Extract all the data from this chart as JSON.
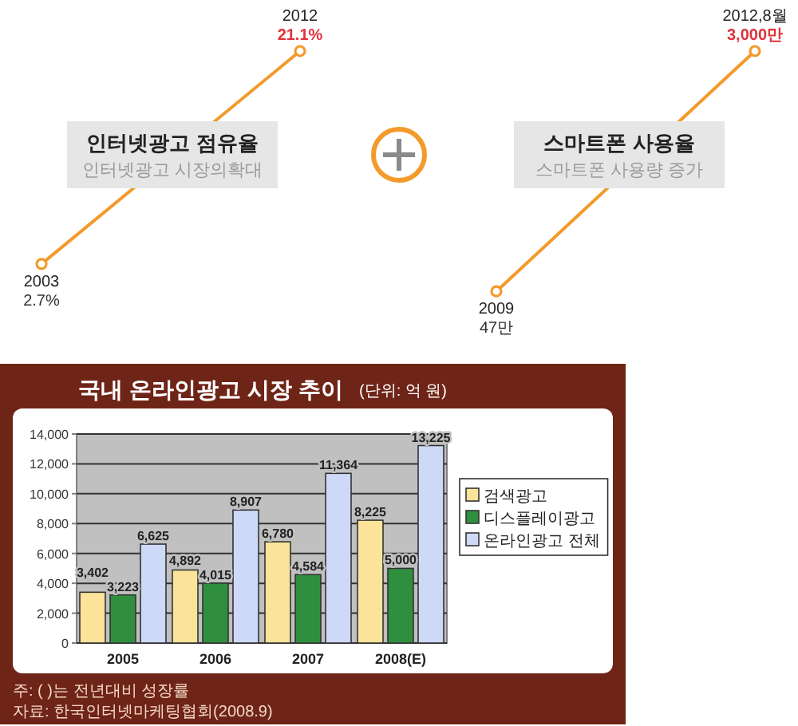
{
  "chart_data": [
    {
      "type": "line",
      "title": "인터넷광고 점유율",
      "subtitle": "인터넷광고 시장의확대",
      "categories": [
        "2003",
        "2012"
      ],
      "series": [
        {
          "color": "#f39a2b",
          "values": [
            2.7,
            21.1
          ],
          "value_labels": [
            "2.7%",
            "21.1%"
          ]
        }
      ],
      "marker": "circle"
    },
    {
      "type": "line",
      "title": "스마트폰 사용율",
      "subtitle": "스마트폰 사용량 증가",
      "categories": [
        "2009",
        "2012,8월"
      ],
      "series": [
        {
          "color": "#f39a2b",
          "values": [
            47,
            3000
          ],
          "value_labels": [
            "47만",
            "3,000만"
          ]
        }
      ],
      "marker": "circle"
    },
    {
      "type": "bar",
      "title": "국내 온라인광고 시장 추이",
      "subtitle": "(단위: 억 원)",
      "categories": [
        "2005",
        "2006",
        "2007",
        "2008(E)"
      ],
      "series": [
        {
          "name": "검색광고",
          "color": "#fbe39a",
          "values": [
            3402,
            4892,
            6780,
            8225
          ],
          "value_labels": [
            "3,402",
            "4,892",
            "6,780",
            "8,225"
          ]
        },
        {
          "name": "디스플레이광고",
          "color": "#2f8f3f",
          "values": [
            3223,
            4015,
            4584,
            5000
          ],
          "value_labels": [
            "3,223",
            "4,015",
            "4,584",
            "5,000"
          ]
        },
        {
          "name": "온라인광고 전체",
          "color": "#cdd9f7",
          "values": [
            6625,
            8907,
            11364,
            13225
          ],
          "value_labels": [
            "6,625",
            "8,907",
            "11,364",
            "13,225"
          ]
        }
      ],
      "ylim": [
        0,
        14000
      ],
      "yticks": [
        0,
        {
          "value": 2000,
          "label": "2,000"
        },
        {
          "value": 4000,
          "label": "4,000"
        },
        {
          "value": 6000,
          "label": "6,000"
        },
        {
          "value": 8000,
          "label": "8,000"
        },
        {
          "value": 10000,
          "label": "10,000"
        },
        {
          "value": 12000,
          "label": "12,000"
        },
        {
          "value": 14000,
          "label": "14,000"
        }
      ],
      "grid": "y",
      "legend": "right",
      "annotations": [
        "주: ( )는 전년대비 성장률",
        "자료: 한국인터넷마케팅협회(2008.9)"
      ]
    }
  ]
}
